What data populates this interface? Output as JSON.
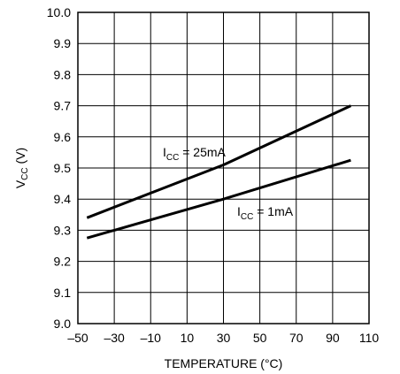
{
  "chart_data": {
    "type": "line",
    "xlabel": "TEMPERATURE (°C)",
    "ylabel": {
      "main": "V",
      "sub": "CC",
      "unit": " (V)"
    },
    "xlim": [
      -50,
      110
    ],
    "ylim": [
      9.0,
      10.0
    ],
    "x_ticks": [
      -50,
      -30,
      -10,
      10,
      30,
      50,
      70,
      90,
      110
    ],
    "x_tick_labels": [
      "–50",
      "–30",
      "–10",
      "10",
      "30",
      "50",
      "70",
      "90",
      "110"
    ],
    "y_ticks": [
      9.0,
      9.1,
      9.2,
      9.3,
      9.4,
      9.5,
      9.6,
      9.7,
      9.8,
      9.9,
      10.0
    ],
    "y_tick_labels": [
      "9.0",
      "9.1",
      "9.2",
      "9.3",
      "9.4",
      "9.5",
      "9.6",
      "9.7",
      "9.8",
      "9.9",
      "10.0"
    ],
    "grid": true,
    "series": [
      {
        "label": {
          "main": "I",
          "sub": "CC",
          "rest": " = 25mA"
        },
        "x": [
          -45,
          30,
          100
        ],
        "y": [
          9.34,
          9.51,
          9.7
        ]
      },
      {
        "label": {
          "main": "I",
          "sub": "CC",
          "rest": " = 1mA"
        },
        "x": [
          -45,
          30,
          100
        ],
        "y": [
          9.275,
          9.4,
          9.525
        ]
      }
    ]
  }
}
